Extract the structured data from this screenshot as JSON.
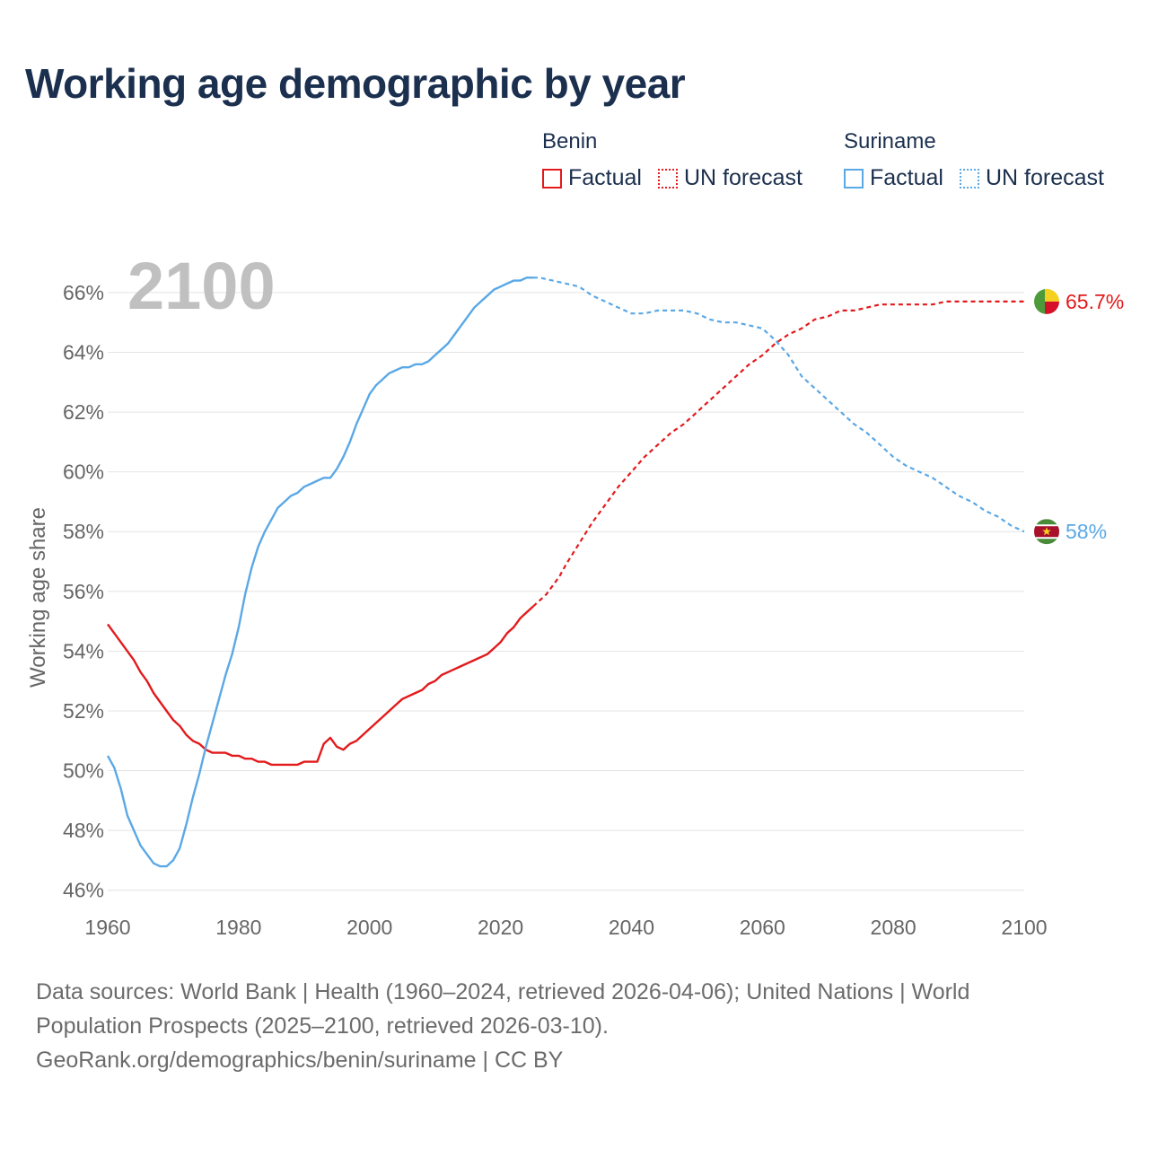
{
  "title": "Working age demographic by year",
  "legend": [
    {
      "country": "Benin",
      "factual_label": "Factual",
      "forecast_label": "UN forecast",
      "color": "#e31a1c"
    },
    {
      "country": "Suriname",
      "factual_label": "Factual",
      "forecast_label": "UN forecast",
      "color": "#5aa8e6"
    }
  ],
  "footer": {
    "line1": "Data sources: World Bank | Health (1960–2024, retrieved 2026-04-06); United Nations | World",
    "line2": "Population Prospects (2025–2100, retrieved 2026-03-10).",
    "line3": "GeoRank.org/demographics/benin/suriname | CC BY"
  },
  "chart_data": {
    "type": "line",
    "year_label": "2100",
    "ylabel": "Working age share",
    "xlim": [
      1960,
      2100
    ],
    "ylim": [
      45.3,
      67.5
    ],
    "x_ticks": [
      1960,
      1980,
      2000,
      2020,
      2040,
      2060,
      2080,
      2100
    ],
    "y_ticks": [
      46,
      48,
      50,
      52,
      54,
      56,
      58,
      60,
      62,
      64,
      66
    ],
    "y_tick_labels": [
      "46%",
      "48%",
      "50%",
      "52%",
      "54%",
      "56%",
      "58%",
      "60%",
      "62%",
      "64%",
      "66%"
    ],
    "forecast_start": 2025,
    "series": [
      {
        "name": "Benin",
        "color": "#e31a1c",
        "end_label": "65.7%",
        "flag": "benin-flag",
        "points": [
          [
            1960,
            54.9
          ],
          [
            1962,
            54.3
          ],
          [
            1964,
            53.7
          ],
          [
            1965,
            53.3
          ],
          [
            1966,
            53.0
          ],
          [
            1967,
            52.6
          ],
          [
            1968,
            52.3
          ],
          [
            1969,
            52.0
          ],
          [
            1970,
            51.7
          ],
          [
            1971,
            51.5
          ],
          [
            1972,
            51.2
          ],
          [
            1973,
            51.0
          ],
          [
            1974,
            50.9
          ],
          [
            1975,
            50.7
          ],
          [
            1976,
            50.6
          ],
          [
            1978,
            50.6
          ],
          [
            1979,
            50.5
          ],
          [
            1980,
            50.5
          ],
          [
            1981,
            50.4
          ],
          [
            1982,
            50.4
          ],
          [
            1983,
            50.3
          ],
          [
            1984,
            50.3
          ],
          [
            1985,
            50.2
          ],
          [
            1986,
            50.2
          ],
          [
            1988,
            50.2
          ],
          [
            1989,
            50.2
          ],
          [
            1990,
            50.3
          ],
          [
            1991,
            50.3
          ],
          [
            1992,
            50.3
          ],
          [
            1993,
            50.9
          ],
          [
            1994,
            51.1
          ],
          [
            1995,
            50.8
          ],
          [
            1996,
            50.7
          ],
          [
            1997,
            50.9
          ],
          [
            1998,
            51.0
          ],
          [
            2000,
            51.4
          ],
          [
            2002,
            51.8
          ],
          [
            2004,
            52.2
          ],
          [
            2005,
            52.4
          ],
          [
            2007,
            52.6
          ],
          [
            2008,
            52.7
          ],
          [
            2009,
            52.9
          ],
          [
            2010,
            53.0
          ],
          [
            2011,
            53.2
          ],
          [
            2012,
            53.3
          ],
          [
            2014,
            53.5
          ],
          [
            2016,
            53.7
          ],
          [
            2018,
            53.9
          ],
          [
            2019,
            54.1
          ],
          [
            2020,
            54.3
          ],
          [
            2021,
            54.6
          ],
          [
            2022,
            54.8
          ],
          [
            2023,
            55.1
          ],
          [
            2024,
            55.3
          ],
          [
            2025,
            55.5
          ],
          [
            2026,
            55.7
          ],
          [
            2027,
            55.9
          ],
          [
            2028,
            56.2
          ],
          [
            2029,
            56.5
          ],
          [
            2030,
            56.9
          ],
          [
            2032,
            57.6
          ],
          [
            2034,
            58.3
          ],
          [
            2036,
            58.9
          ],
          [
            2038,
            59.5
          ],
          [
            2040,
            60.0
          ],
          [
            2042,
            60.5
          ],
          [
            2044,
            60.9
          ],
          [
            2046,
            61.3
          ],
          [
            2048,
            61.6
          ],
          [
            2050,
            62.0
          ],
          [
            2052,
            62.4
          ],
          [
            2054,
            62.8
          ],
          [
            2056,
            63.2
          ],
          [
            2058,
            63.6
          ],
          [
            2060,
            63.9
          ],
          [
            2062,
            64.3
          ],
          [
            2064,
            64.6
          ],
          [
            2066,
            64.8
          ],
          [
            2068,
            65.1
          ],
          [
            2070,
            65.2
          ],
          [
            2072,
            65.4
          ],
          [
            2074,
            65.4
          ],
          [
            2076,
            65.5
          ],
          [
            2078,
            65.6
          ],
          [
            2080,
            65.6
          ],
          [
            2082,
            65.6
          ],
          [
            2086,
            65.6
          ],
          [
            2088,
            65.7
          ],
          [
            2100,
            65.7
          ]
        ]
      },
      {
        "name": "Suriname",
        "color": "#5aa8e6",
        "end_label": "58%",
        "flag": "suriname-flag",
        "points": [
          [
            1960,
            50.5
          ],
          [
            1961,
            50.1
          ],
          [
            1962,
            49.4
          ],
          [
            1963,
            48.5
          ],
          [
            1964,
            48.0
          ],
          [
            1965,
            47.5
          ],
          [
            1966,
            47.2
          ],
          [
            1967,
            46.9
          ],
          [
            1968,
            46.8
          ],
          [
            1969,
            46.8
          ],
          [
            1970,
            47.0
          ],
          [
            1971,
            47.4
          ],
          [
            1972,
            48.2
          ],
          [
            1973,
            49.1
          ],
          [
            1974,
            49.9
          ],
          [
            1975,
            50.8
          ],
          [
            1976,
            51.6
          ],
          [
            1977,
            52.4
          ],
          [
            1978,
            53.2
          ],
          [
            1979,
            53.9
          ],
          [
            1980,
            54.8
          ],
          [
            1981,
            55.9
          ],
          [
            1982,
            56.8
          ],
          [
            1983,
            57.5
          ],
          [
            1984,
            58.0
          ],
          [
            1985,
            58.4
          ],
          [
            1986,
            58.8
          ],
          [
            1987,
            59.0
          ],
          [
            1988,
            59.2
          ],
          [
            1989,
            59.3
          ],
          [
            1990,
            59.5
          ],
          [
            1991,
            59.6
          ],
          [
            1992,
            59.7
          ],
          [
            1993,
            59.8
          ],
          [
            1994,
            59.8
          ],
          [
            1995,
            60.1
          ],
          [
            1996,
            60.5
          ],
          [
            1997,
            61.0
          ],
          [
            1998,
            61.6
          ],
          [
            1999,
            62.1
          ],
          [
            2000,
            62.6
          ],
          [
            2001,
            62.9
          ],
          [
            2002,
            63.1
          ],
          [
            2003,
            63.3
          ],
          [
            2004,
            63.4
          ],
          [
            2005,
            63.5
          ],
          [
            2006,
            63.5
          ],
          [
            2007,
            63.6
          ],
          [
            2008,
            63.6
          ],
          [
            2009,
            63.7
          ],
          [
            2010,
            63.9
          ],
          [
            2011,
            64.1
          ],
          [
            2012,
            64.3
          ],
          [
            2013,
            64.6
          ],
          [
            2014,
            64.9
          ],
          [
            2015,
            65.2
          ],
          [
            2016,
            65.5
          ],
          [
            2017,
            65.7
          ],
          [
            2018,
            65.9
          ],
          [
            2019,
            66.1
          ],
          [
            2020,
            66.2
          ],
          [
            2021,
            66.3
          ],
          [
            2022,
            66.4
          ],
          [
            2023,
            66.4
          ],
          [
            2024,
            66.5
          ],
          [
            2025,
            66.5
          ],
          [
            2026,
            66.5
          ],
          [
            2028,
            66.4
          ],
          [
            2030,
            66.3
          ],
          [
            2032,
            66.2
          ],
          [
            2034,
            65.9
          ],
          [
            2036,
            65.7
          ],
          [
            2038,
            65.5
          ],
          [
            2040,
            65.3
          ],
          [
            2042,
            65.3
          ],
          [
            2044,
            65.4
          ],
          [
            2046,
            65.4
          ],
          [
            2048,
            65.4
          ],
          [
            2050,
            65.3
          ],
          [
            2052,
            65.1
          ],
          [
            2054,
            65.0
          ],
          [
            2056,
            65.0
          ],
          [
            2058,
            64.9
          ],
          [
            2060,
            64.8
          ],
          [
            2062,
            64.4
          ],
          [
            2064,
            63.9
          ],
          [
            2066,
            63.2
          ],
          [
            2068,
            62.8
          ],
          [
            2070,
            62.4
          ],
          [
            2072,
            62.0
          ],
          [
            2074,
            61.6
          ],
          [
            2076,
            61.3
          ],
          [
            2078,
            60.9
          ],
          [
            2080,
            60.5
          ],
          [
            2082,
            60.2
          ],
          [
            2084,
            60.0
          ],
          [
            2086,
            59.8
          ],
          [
            2088,
            59.5
          ],
          [
            2090,
            59.2
          ],
          [
            2092,
            59.0
          ],
          [
            2094,
            58.7
          ],
          [
            2096,
            58.5
          ],
          [
            2098,
            58.2
          ],
          [
            2100,
            58.0
          ]
        ]
      }
    ]
  }
}
